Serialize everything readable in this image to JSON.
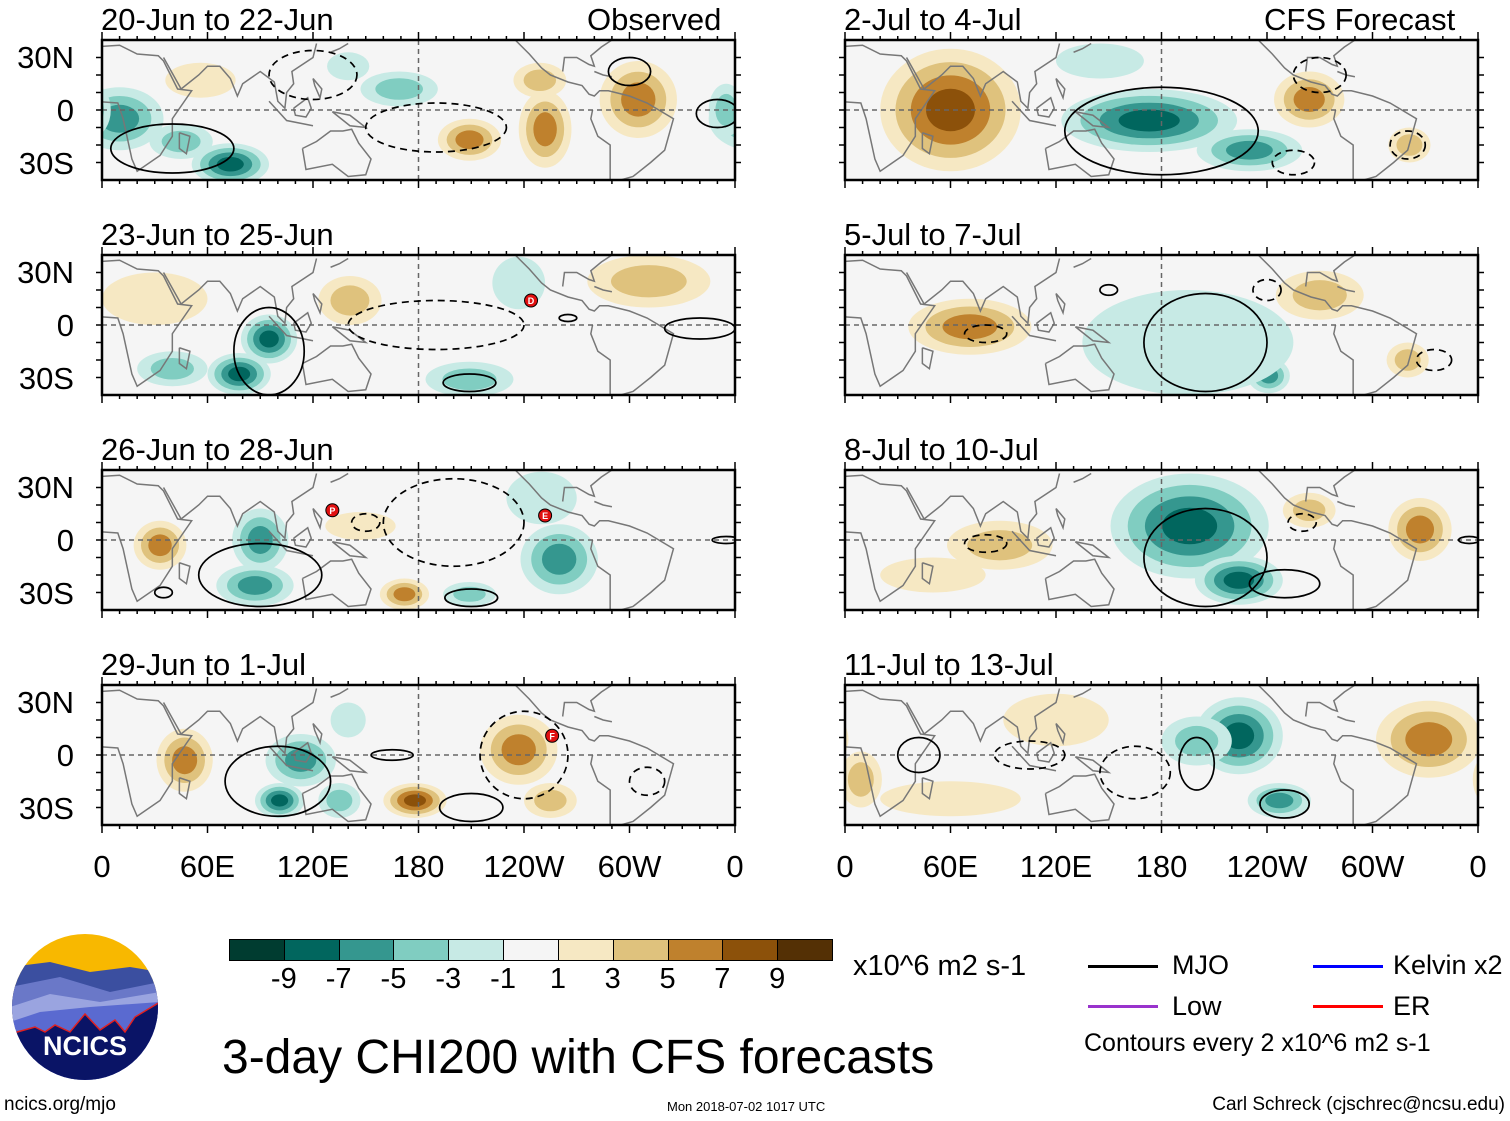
{
  "header": {
    "observed_label": "Observed",
    "forecast_label": "CFS Forecast"
  },
  "axes": {
    "y_ticks": [
      "30N",
      "0",
      "30S"
    ],
    "x_ticks": [
      "0",
      "60E",
      "120E",
      "180",
      "120W",
      "60W",
      "0"
    ],
    "x_tick_lons": [
      0,
      60,
      120,
      180,
      240,
      300,
      360
    ]
  },
  "palette": {
    "levels": [
      -11,
      -9,
      -7,
      -5,
      -3,
      -1,
      1,
      3,
      5,
      7,
      9
    ],
    "colors": [
      "#003c30",
      "#01665e",
      "#35978f",
      "#80cdc1",
      "#c7eae5",
      "#f5f5f5",
      "#f6e8c3",
      "#dfc27d",
      "#bf812d",
      "#8c510a",
      "#543005"
    ]
  },
  "panels": [
    {
      "title": "20-Jun to 22-Jun",
      "column": "observed",
      "anomalies": [
        [
          10,
          -5,
          25,
          18,
          -6
        ],
        [
          73,
          -31,
          22,
          12,
          -9
        ],
        [
          45,
          -18,
          18,
          10,
          -5
        ],
        [
          169,
          12,
          22,
          10,
          -4
        ],
        [
          140,
          25,
          12,
          8,
          -3
        ],
        [
          209,
          -17,
          18,
          12,
          7
        ],
        [
          252,
          -11,
          15,
          22,
          6
        ],
        [
          305,
          6,
          22,
          22,
          6
        ],
        [
          249,
          17,
          15,
          10,
          4
        ],
        [
          56,
          17,
          20,
          10,
          3
        ],
        [
          355,
          0,
          10,
          15,
          -5
        ]
      ],
      "contours": [
        [
          40,
          -22,
          35,
          14,
          0
        ],
        [
          300,
          22,
          12,
          8,
          0
        ],
        [
          350,
          -2,
          12,
          8,
          0
        ],
        [
          190,
          -10,
          40,
          14,
          1
        ],
        [
          120,
          20,
          25,
          14,
          1
        ]
      ],
      "storms": []
    },
    {
      "title": "23-Jun to 25-Jun",
      "column": "observed",
      "anomalies": [
        [
          95,
          -8,
          16,
          14,
          -9
        ],
        [
          78,
          -28,
          18,
          12,
          -8
        ],
        [
          209,
          -31,
          25,
          10,
          -5
        ],
        [
          237,
          24,
          15,
          15,
          -3
        ],
        [
          40,
          -25,
          20,
          10,
          -4
        ],
        [
          141,
          14,
          18,
          14,
          5
        ],
        [
          311,
          25,
          35,
          15,
          4
        ],
        [
          30,
          15,
          30,
          15,
          2
        ]
      ],
      "contours": [
        [
          95,
          -15,
          20,
          25,
          0
        ],
        [
          209,
          -33,
          15,
          5,
          0
        ],
        [
          265,
          4,
          5,
          2,
          0
        ],
        [
          340,
          -2,
          20,
          6,
          0
        ],
        [
          190,
          0,
          50,
          14,
          1
        ]
      ],
      "storms": [
        [
          244,
          14,
          "D"
        ]
      ]
    },
    {
      "title": "26-Jun to 28-Jun",
      "column": "observed",
      "anomalies": [
        [
          90,
          0,
          16,
          18,
          -7
        ],
        [
          87,
          -26,
          22,
          12,
          -7
        ],
        [
          260,
          -11,
          22,
          20,
          -7
        ],
        [
          209,
          -31,
          15,
          7,
          -5
        ],
        [
          33,
          -3,
          15,
          14,
          6
        ],
        [
          172,
          -31,
          14,
          9,
          7
        ],
        [
          147,
          8,
          20,
          8,
          3
        ],
        [
          250,
          24,
          20,
          15,
          -3
        ]
      ],
      "contours": [
        [
          90,
          -20,
          35,
          18,
          0
        ],
        [
          210,
          -33,
          15,
          5,
          0
        ],
        [
          35,
          -30,
          5,
          3,
          0
        ],
        [
          355,
          0,
          8,
          2,
          0
        ],
        [
          200,
          10,
          40,
          25,
          1
        ],
        [
          150,
          10,
          8,
          5,
          1
        ]
      ],
      "storms": [
        [
          131,
          17,
          "P"
        ],
        [
          252,
          14,
          "E"
        ]
      ]
    },
    {
      "title": "29-Jun to 1-Jul",
      "column": "observed",
      "anomalies": [
        [
          47,
          -3,
          16,
          18,
          6
        ],
        [
          237,
          3,
          22,
          20,
          6
        ],
        [
          178,
          -26,
          18,
          10,
          8
        ],
        [
          255,
          -26,
          15,
          10,
          4
        ],
        [
          101,
          -26,
          14,
          10,
          -8
        ],
        [
          113,
          -3,
          20,
          15,
          -6
        ],
        [
          135,
          -26,
          12,
          10,
          -4
        ],
        [
          140,
          20,
          10,
          10,
          -3
        ]
      ],
      "contours": [
        [
          100,
          -15,
          30,
          20,
          0
        ],
        [
          165,
          0,
          12,
          3,
          0
        ],
        [
          210,
          -30,
          18,
          8,
          0
        ],
        [
          240,
          0,
          25,
          25,
          1
        ],
        [
          310,
          -15,
          10,
          8,
          1
        ]
      ],
      "storms": [
        [
          256,
          11,
          "F"
        ]
      ]
    },
    {
      "title": "2-Jul to 4-Jul",
      "column": "forecast",
      "anomalies": [
        [
          60,
          0,
          40,
          35,
          8
        ],
        [
          264,
          6,
          20,
          16,
          6
        ],
        [
          321,
          -20,
          12,
          10,
          4
        ],
        [
          173,
          -6,
          50,
          18,
          -8
        ],
        [
          230,
          -23,
          30,
          12,
          -6
        ],
        [
          145,
          28,
          25,
          10,
          -3
        ]
      ],
      "contours": [
        [
          180,
          -12,
          55,
          25,
          0
        ],
        [
          270,
          20,
          15,
          10,
          1
        ],
        [
          320,
          -20,
          10,
          8,
          1
        ],
        [
          255,
          -30,
          12,
          7,
          1
        ]
      ],
      "storms": []
    },
    {
      "title": "5-Jul to 7-Jul",
      "column": "forecast",
      "anomalies": [
        [
          71,
          -1,
          35,
          16,
          6
        ],
        [
          270,
          17,
          25,
          14,
          5
        ],
        [
          320,
          -20,
          12,
          10,
          4
        ],
        [
          185,
          2,
          20,
          16,
          -8
        ],
        [
          207,
          -21,
          20,
          14,
          -8
        ],
        [
          241,
          -29,
          12,
          10,
          -6
        ],
        [
          195,
          -10,
          60,
          30,
          -2
        ]
      ],
      "contours": [
        [
          205,
          -10,
          35,
          28,
          0
        ],
        [
          150,
          20,
          5,
          3,
          0
        ],
        [
          80,
          -5,
          12,
          5,
          1
        ],
        [
          240,
          20,
          8,
          6,
          1
        ],
        [
          335,
          -20,
          10,
          6,
          1
        ]
      ],
      "storms": []
    },
    {
      "title": "8-Jul to 10-Jul",
      "column": "forecast",
      "anomalies": [
        [
          196,
          8,
          45,
          30,
          -9
        ],
        [
          224,
          -23,
          25,
          14,
          -8
        ],
        [
          88,
          -3,
          30,
          14,
          5
        ],
        [
          327,
          6,
          18,
          18,
          6
        ],
        [
          264,
          17,
          15,
          10,
          4
        ],
        [
          50,
          -20,
          30,
          10,
          2
        ]
      ],
      "contours": [
        [
          205,
          -10,
          35,
          28,
          0
        ],
        [
          250,
          -25,
          20,
          8,
          0
        ],
        [
          80,
          -2,
          12,
          5,
          1
        ],
        [
          260,
          10,
          8,
          5,
          1
        ],
        [
          355,
          0,
          6,
          2,
          0
        ]
      ],
      "storms": []
    },
    {
      "title": "11-Jul to 13-Jul",
      "column": "forecast",
      "anomalies": [
        [
          224,
          11,
          25,
          22,
          -8
        ],
        [
          247,
          -26,
          18,
          10,
          -7
        ],
        [
          200,
          8,
          20,
          14,
          -5
        ],
        [
          332,
          9,
          30,
          22,
          6
        ],
        [
          9,
          -14,
          12,
          16,
          5
        ],
        [
          60,
          -25,
          40,
          10,
          2
        ],
        [
          120,
          20,
          30,
          15,
          2
        ]
      ],
      "contours": [
        [
          42,
          0,
          12,
          10,
          0
        ],
        [
          200,
          -5,
          10,
          15,
          0
        ],
        [
          250,
          -28,
          14,
          8,
          0
        ],
        [
          105,
          0,
          20,
          8,
          1
        ],
        [
          165,
          -10,
          20,
          15,
          1
        ]
      ],
      "storms": []
    }
  ],
  "colorbar": {
    "tick_labels": [
      "-9",
      "-7",
      "-5",
      "-3",
      "-1",
      "1",
      "3",
      "5",
      "7",
      "9"
    ],
    "units": "x10^6 m2 s-1"
  },
  "legend": {
    "items": [
      {
        "label": "MJO",
        "color": "#000000"
      },
      {
        "label": "Kelvin x2",
        "color": "#0000ff"
      },
      {
        "label": "Low",
        "color": "#9933cc"
      },
      {
        "label": "ER",
        "color": "#ff0000"
      }
    ],
    "note": "Contours every 2 x10^6 m2 s-1"
  },
  "title": "3-day CHI200 with CFS forecasts",
  "footer": {
    "url": "ncics.org/mjo",
    "timestamp": "Mon 2018-07-02 1017 UTC",
    "credit": "Carl Schreck (cjschrec@ncsu.edu)"
  },
  "logo": {
    "text": "NCICS"
  }
}
